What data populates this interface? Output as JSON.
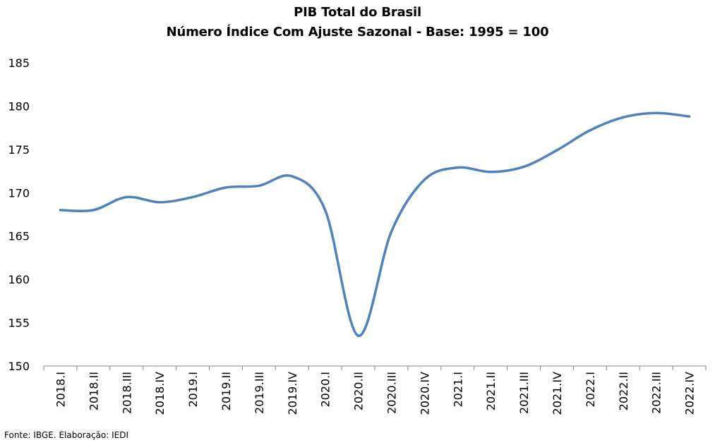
{
  "chart_data": {
    "type": "line",
    "title": "PIB Total do Brasil",
    "subtitle": "Número Índice Com Ajuste Sazonal - Base: 1995 = 100",
    "categories": [
      "2018.I",
      "2018.II",
      "2018.III",
      "2018.IV",
      "2019.I",
      "2019.II",
      "2019.III",
      "2019.IV",
      "2020.I",
      "2020.II",
      "2020.III",
      "2020.IV",
      "2021.I",
      "2021.II",
      "2021.III",
      "2021.IV",
      "2022.I",
      "2022.II",
      "2022.III",
      "2022.IV"
    ],
    "series": [
      {
        "values": [
          168.0,
          168.0,
          169.5,
          168.9,
          169.5,
          170.6,
          170.8,
          171.9,
          168.0,
          153.5,
          165.5,
          171.5,
          172.9,
          172.4,
          173.0,
          174.9,
          177.2,
          178.7,
          179.2,
          178.8
        ],
        "color": "#4F81BD"
      }
    ],
    "yticks": [
      "150",
      "155",
      "160",
      "165",
      "170",
      "175",
      "180",
      "185"
    ],
    "ylim": [
      150,
      185
    ],
    "grid": false,
    "legend": "none"
  },
  "source_note": "Fonte: IBGE. Elaboração: IEDI"
}
